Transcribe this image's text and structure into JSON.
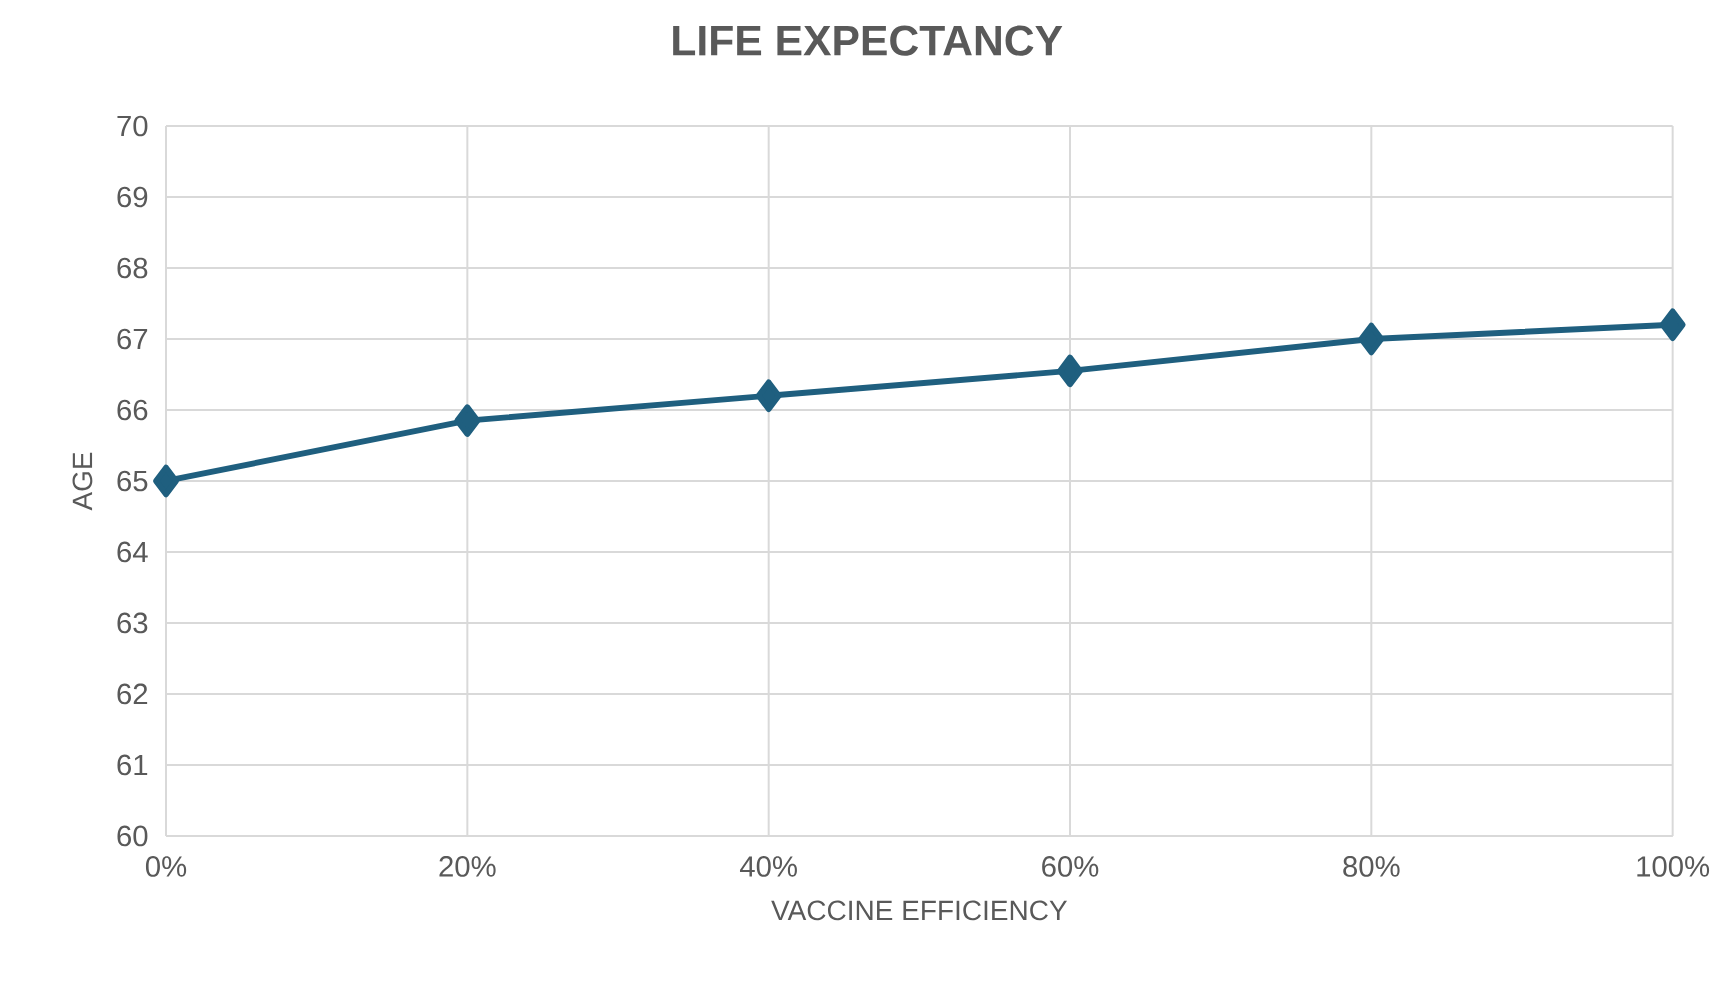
{
  "chart_data": {
    "type": "line",
    "title": "LIFE EXPECTANCY",
    "xlabel": "VACCINE EFFICIENCY",
    "ylabel": "AGE",
    "categories": [
      "0%",
      "20%",
      "40%",
      "60%",
      "80%",
      "100%"
    ],
    "series": [
      {
        "color": "#1f5f7f",
        "values": [
          65.0,
          65.85,
          66.2,
          66.55,
          67.0,
          67.2
        ]
      }
    ],
    "ylim": [
      60,
      70
    ],
    "yticks": [
      60,
      61,
      62,
      63,
      64,
      65,
      66,
      67,
      68,
      69,
      70
    ],
    "grid": true,
    "marker": "diamond",
    "line_style": "solid"
  }
}
